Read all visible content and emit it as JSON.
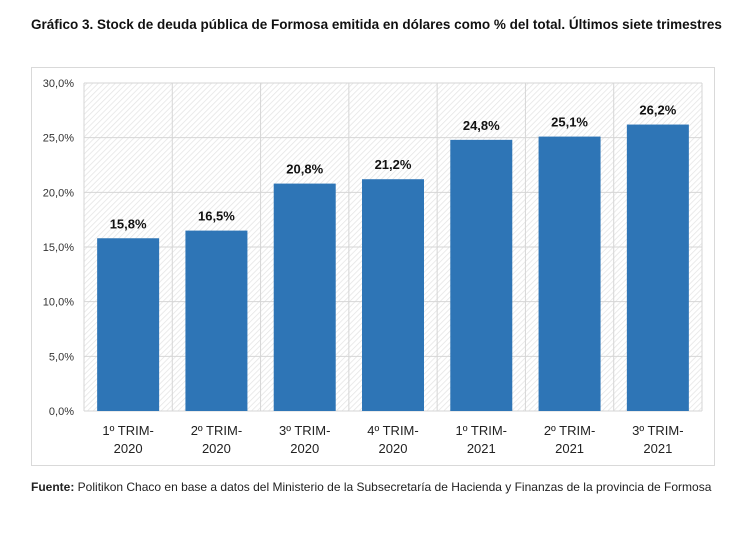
{
  "title": "Gráfico 3. Stock de deuda pública de Formosa emitida en dólares como % del total. Últimos siete trimestres",
  "source": {
    "label": "Fuente:",
    "text": " Politikon Chaco en base a datos del Ministerio de la Subsecretaría de Hacienda y Finanzas de la provincia de Formosa"
  },
  "chart_data": {
    "type": "bar",
    "title": "Gráfico 3. Stock de deuda pública de Formosa emitida en dólares como % del total. Últimos siete trimestres",
    "categories": [
      [
        "1º TRIM-",
        "2020"
      ],
      [
        "2º TRIM-",
        "2020"
      ],
      [
        "3º TRIM-",
        "2020"
      ],
      [
        "4º TRIM-",
        "2020"
      ],
      [
        "1º TRIM-",
        "2021"
      ],
      [
        "2º TRIM-",
        "2021"
      ],
      [
        "3º TRIM-",
        "2021"
      ]
    ],
    "values": [
      15.8,
      16.5,
      20.8,
      21.2,
      24.8,
      25.1,
      26.2
    ],
    "data_labels": [
      "15,8%",
      "16,5%",
      "20,8%",
      "21,2%",
      "24,8%",
      "25,1%",
      "26,2%"
    ],
    "yticks": [
      "0,0%",
      "5,0%",
      "10,0%",
      "15,0%",
      "20,0%",
      "25,0%",
      "30,0%"
    ],
    "ylim": [
      0,
      30
    ],
    "grid": true,
    "bar_color": "#2e75b6",
    "xlabel": "",
    "ylabel": ""
  }
}
